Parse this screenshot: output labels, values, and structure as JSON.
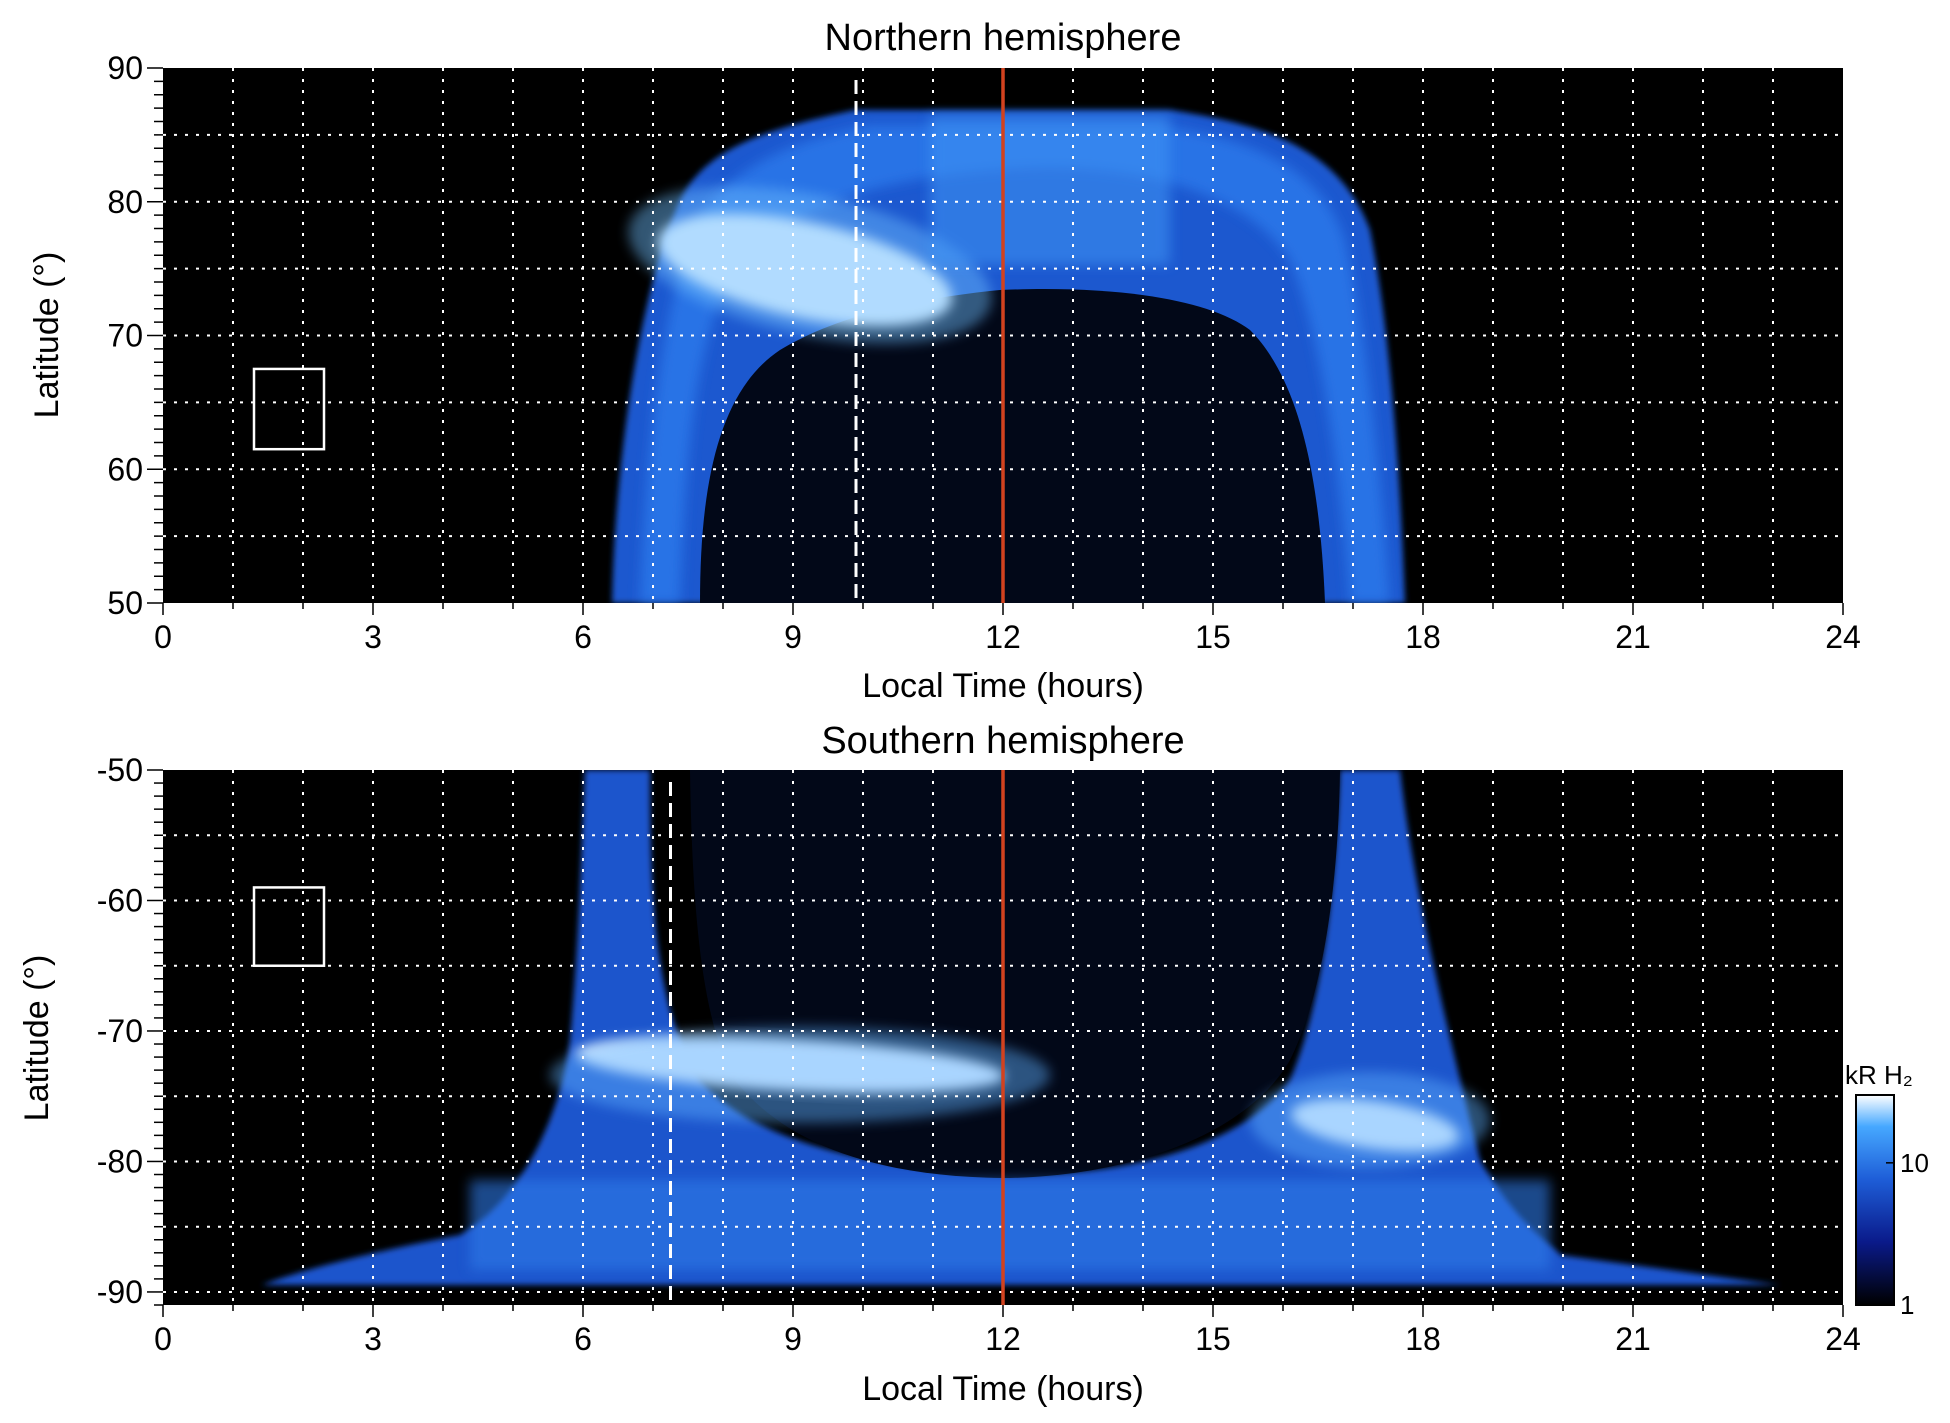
{
  "chart_data": [
    {
      "type": "heatmap",
      "title": "Northern hemisphere",
      "xlabel": "Local Time (hours)",
      "ylabel": "Latitude (°)",
      "xlim": [
        0,
        24
      ],
      "ylim": [
        50,
        90
      ],
      "xticks": [
        "0",
        "3",
        "6",
        "9",
        "12",
        "15",
        "18",
        "21",
        "24"
      ],
      "yticks": [
        "50",
        "60",
        "70",
        "80",
        "90"
      ],
      "grid": true,
      "markers": {
        "dashed_white_line_lt": 9.9,
        "solid_red_line_lt": 12,
        "box": {
          "lt": [
            1.3,
            2.3
          ],
          "lat": [
            61.5,
            67.5
          ]
        }
      },
      "emission_features": [
        {
          "feature": "auroral oval",
          "lt_range": [
            6.3,
            17.7
          ],
          "lat_range": [
            50,
            86.5
          ]
        },
        {
          "feature": "bright morning arc",
          "lt_range": [
            7.0,
            11.3
          ],
          "lat_range": [
            69,
            77
          ],
          "brightness_kR": 30
        }
      ]
    },
    {
      "type": "heatmap",
      "title": "Southern hemisphere",
      "xlabel": "Local Time (hours)",
      "ylabel": "Latitude (°)",
      "xlim": [
        0,
        24
      ],
      "ylim": [
        -91,
        -50
      ],
      "xticks": [
        "0",
        "3",
        "6",
        "9",
        "12",
        "15",
        "18",
        "21",
        "24"
      ],
      "yticks": [
        "-50",
        "-60",
        "-70",
        "-80",
        "-90"
      ],
      "grid": true,
      "markers": {
        "dashed_white_line_lt": 7.25,
        "solid_red_line_lt": 12,
        "box": {
          "lt": [
            1.3,
            2.3
          ],
          "lat": [
            -59,
            -65
          ]
        }
      },
      "emission_features": [
        {
          "feature": "auroral oval",
          "lt_range": [
            3.5,
            23.5
          ],
          "lat_range": [
            -89,
            -50
          ]
        },
        {
          "feature": "bright pre-noon arc",
          "lt_range": [
            5.8,
            11.5
          ],
          "lat_range": [
            -75,
            -70
          ],
          "brightness_kR": 30
        },
        {
          "feature": "bright dusk arc",
          "lt_range": [
            15.8,
            18.8
          ],
          "lat_range": [
            -79,
            -74
          ],
          "brightness_kR": 25
        }
      ]
    }
  ],
  "colorbar": {
    "label": "kR H₂",
    "scale": "log",
    "range": [
      1,
      30
    ],
    "ticks": [
      "10",
      "1"
    ],
    "colors": [
      "#000000",
      "#0a1a8a",
      "#1e5ed8",
      "#46a8ff",
      "#ffffff"
    ]
  }
}
